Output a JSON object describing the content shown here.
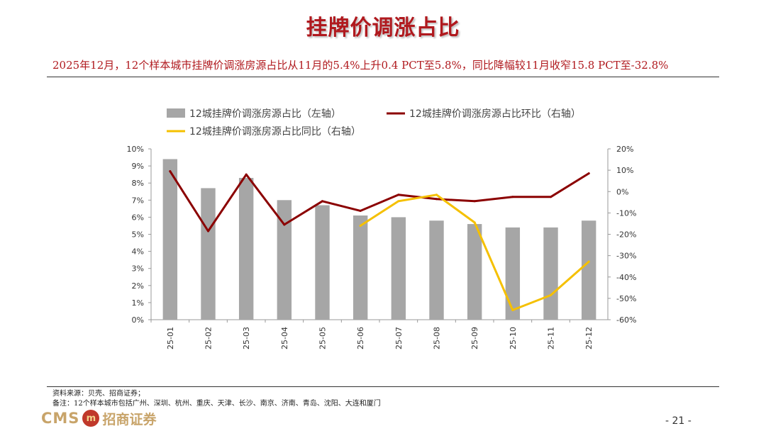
{
  "page": {
    "title": "挂牌价调涨占比",
    "subtitle": "2025年12月，12个样本城市挂牌价调涨房源占比从11月的5.4%上升0.4 PCT至5.8%，同比降幅较11月收窄15.8 PCT至-32.8%",
    "source": "资料来源：贝壳、招商证券；",
    "note": "备注：12个样本城市包括广州、深圳、杭州、重庆、天津、长沙、南京、济南、青岛、沈阳、大连和厦门",
    "logo_text": "CMS",
    "logo_badge": "m",
    "logo_cn": "招商证券",
    "page_number": "- 21 -"
  },
  "chart_data": {
    "type": "bar",
    "categories": [
      "25-01",
      "25-02",
      "25-03",
      "25-04",
      "25-05",
      "25-06",
      "25-07",
      "25-08",
      "25-09",
      "25-10",
      "25-11",
      "25-12"
    ],
    "left_axis": {
      "ylim": [
        0,
        10
      ],
      "ticks": [
        "0%",
        "1%",
        "2%",
        "3%",
        "4%",
        "5%",
        "6%",
        "7%",
        "8%",
        "9%",
        "10%"
      ]
    },
    "right_axis": {
      "ylim": [
        -60,
        20
      ],
      "ticks": [
        "-60%",
        "-50%",
        "-40%",
        "-30%",
        "-20%",
        "-10%",
        "0%",
        "10%",
        "20%"
      ]
    },
    "series": [
      {
        "name": "12城挂牌价调涨房源占比（左轴）",
        "type": "bar",
        "axis": "left",
        "color": "#a6a6a6",
        "values": [
          9.4,
          7.7,
          8.3,
          7.0,
          6.7,
          6.1,
          6.0,
          5.8,
          5.6,
          5.4,
          5.4,
          5.8
        ]
      },
      {
        "name": "12城挂牌价调涨房源占比环比（右轴）",
        "type": "line",
        "axis": "right",
        "color": "#8b0000",
        "values": [
          9.5,
          -18.5,
          8.0,
          -15.5,
          -4.5,
          -9.0,
          -1.5,
          -3.5,
          -4.5,
          -2.5,
          -2.5,
          8.5
        ]
      },
      {
        "name": "12城挂牌价调涨房源占比同比（右轴）",
        "type": "line",
        "axis": "right",
        "color": "#f5c000",
        "values": [
          null,
          null,
          null,
          null,
          null,
          -16.0,
          -4.5,
          -1.5,
          -14.5,
          -55.5,
          -48.5,
          -32.8
        ]
      }
    ]
  }
}
